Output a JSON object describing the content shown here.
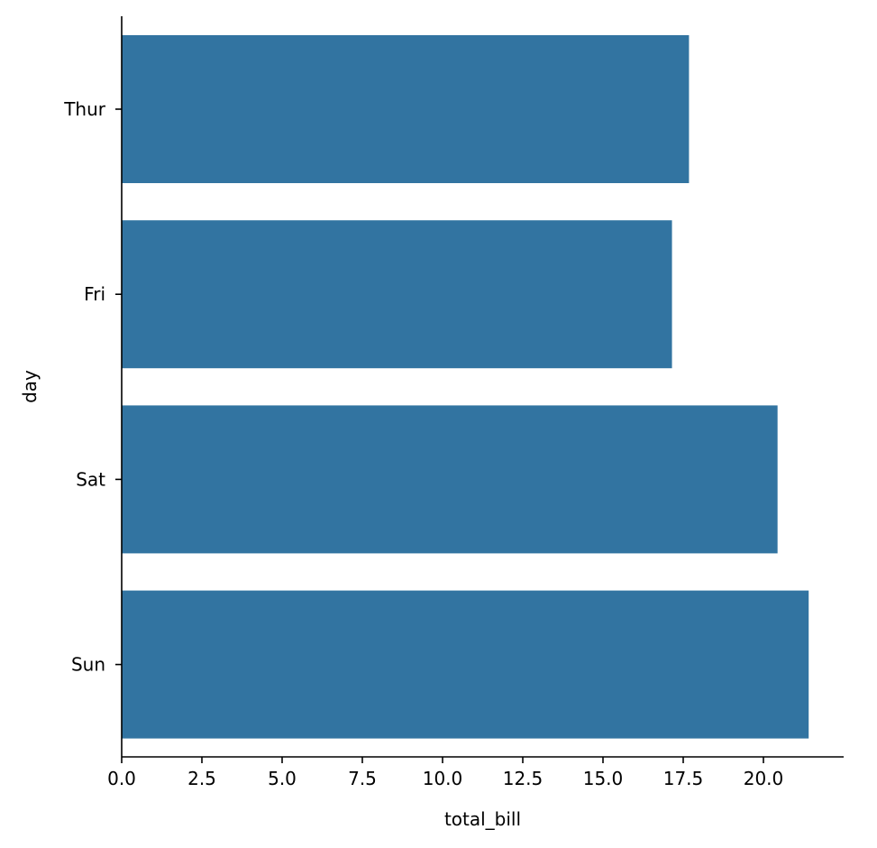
{
  "chart_data": {
    "type": "bar",
    "orientation": "horizontal",
    "categories": [
      "Thur",
      "Fri",
      "Sat",
      "Sun"
    ],
    "values": [
      17.68,
      17.15,
      20.44,
      21.41
    ],
    "xlabel": "total_bill",
    "ylabel": "day",
    "xlim": [
      0,
      22.5
    ],
    "xticks": [
      "0.0",
      "2.5",
      "5.0",
      "7.5",
      "10.0",
      "12.5",
      "15.0",
      "17.5",
      "20.0"
    ],
    "grid": false,
    "bar_color": "#3274a1",
    "axis_color": "#000000"
  }
}
